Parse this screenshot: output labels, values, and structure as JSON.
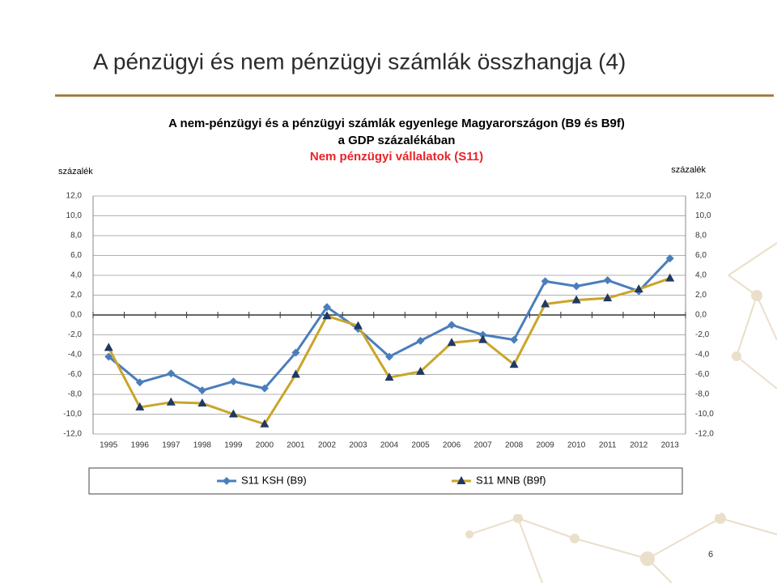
{
  "slide_title": "A pénzügyi és nem pénzügyi számlák összhangja (4)",
  "page_number": "6",
  "chart_data": {
    "type": "line",
    "title": [
      "A nem-pénzügyi és a pénzügyi számlák egyenlege Magyarországon (B9 és B9f)",
      "a GDP százalékában"
    ],
    "subtitle": "Nem pénzügyi vállalatok (S11)",
    "y_label": "százalék",
    "y2_label": "százalék",
    "categories": [
      "1995",
      "1996",
      "1997",
      "1998",
      "1999",
      "2000",
      "2001",
      "2002",
      "2003",
      "2004",
      "2005",
      "2006",
      "2007",
      "2008",
      "2009",
      "2010",
      "2011",
      "2012",
      "2013"
    ],
    "series": [
      {
        "name": "S11 KSH (B9)",
        "color": "#4a7ebb",
        "marker": "diamond",
        "values": [
          -4.2,
          -6.8,
          -5.9,
          -7.6,
          -6.7,
          -7.4,
          -3.8,
          0.8,
          -1.4,
          -4.2,
          -2.6,
          -1.0,
          -2.0,
          -2.5,
          3.4,
          2.9,
          3.5,
          2.4,
          5.7
        ]
      },
      {
        "name": "S11 MNB (B9f)",
        "color": "#c9a52a",
        "marker": "triangle",
        "marker_color": "#1f3864",
        "values": [
          -3.3,
          -9.3,
          -8.8,
          -8.9,
          -10.0,
          -11.0,
          -6.0,
          -0.1,
          -1.1,
          -6.3,
          -5.7,
          -2.8,
          -2.5,
          -5.0,
          1.1,
          1.5,
          1.7,
          2.6,
          3.7
        ]
      }
    ],
    "ylim": [
      -12,
      12
    ],
    "yticks": [
      {
        "value": -12,
        "label": "-12,0"
      },
      {
        "value": -10,
        "label": "-10,0"
      },
      {
        "value": -8,
        "label": "-8,0"
      },
      {
        "value": -6,
        "label": "-6,0"
      },
      {
        "value": -4,
        "label": "-4,0"
      },
      {
        "value": -2,
        "label": "-2,0"
      },
      {
        "value": 0,
        "label": "0,0"
      },
      {
        "value": 2,
        "label": "2,0"
      },
      {
        "value": 4,
        "label": "4,0"
      },
      {
        "value": 6,
        "label": "6,0"
      },
      {
        "value": 8,
        "label": "8,0"
      },
      {
        "value": 10,
        "label": "10,0"
      },
      {
        "value": 12,
        "label": "12,0"
      }
    ],
    "y2lim": [
      -12,
      12
    ],
    "y2ticks": [
      {
        "value": -12,
        "label": "-12,0"
      },
      {
        "value": -10,
        "label": "-10,0"
      },
      {
        "value": -8,
        "label": "-8,0"
      },
      {
        "value": -6,
        "label": "-6,0"
      },
      {
        "value": -4,
        "label": "-4,0"
      },
      {
        "value": -2,
        "label": "-2,0"
      },
      {
        "value": 0,
        "label": "0,0"
      },
      {
        "value": 2,
        "label": "2,0"
      },
      {
        "value": 4,
        "label": "4,0"
      },
      {
        "value": 6,
        "label": "6,0"
      },
      {
        "value": 8,
        "label": "8,0"
      },
      {
        "value": 10,
        "label": "10,0"
      },
      {
        "value": 12,
        "label": "12,0"
      }
    ],
    "grid": true,
    "legend": "bottom"
  }
}
